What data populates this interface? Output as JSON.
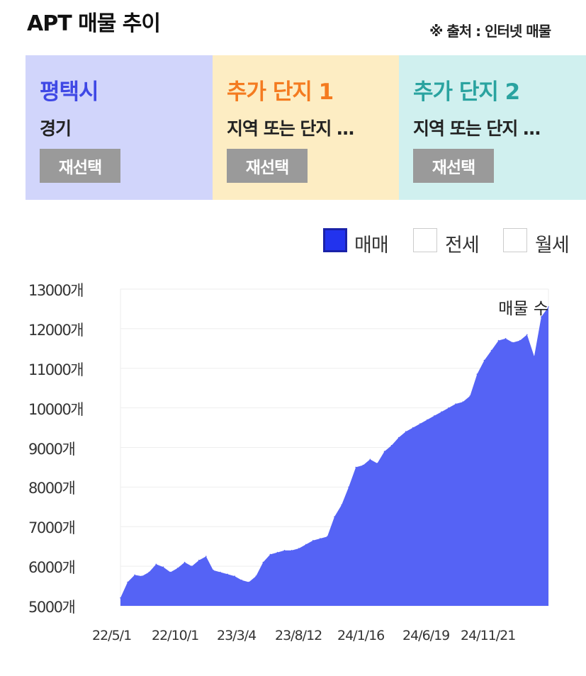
{
  "header": {
    "title": "APT 매물 추이",
    "source": "※ 출처 : 인터넷 매물"
  },
  "panels": [
    {
      "name": "평택시",
      "sub": "경기",
      "button": "재선택",
      "bg": "#d1d5fb",
      "color": "#3f48e5"
    },
    {
      "name": "추가 단지 1",
      "sub": "지역 또는 단지 …",
      "button": "재선택",
      "bg": "#fdedc3",
      "color": "#f47b20"
    },
    {
      "name": "추가 단지 2",
      "sub": "지역 또는 단지 …",
      "button": "재선택",
      "bg": "#d0f0ef",
      "color": "#2aa3a0"
    }
  ],
  "legend": [
    {
      "label": "매매",
      "checked": true,
      "color": "#2233ee"
    },
    {
      "label": "전세",
      "checked": false,
      "color": "#ffffff"
    },
    {
      "label": "월세",
      "checked": false,
      "color": "#ffffff"
    }
  ],
  "chart_data": {
    "type": "area",
    "title": "",
    "annotation": "매물 수",
    "color": "#5563f5",
    "ylim": [
      5000,
      13000
    ],
    "yticks": [
      13000,
      12000,
      11000,
      10000,
      9000,
      8000,
      7000,
      6000,
      5000
    ],
    "ytick_labels": [
      "13000개",
      "12000개",
      "11000개",
      "10000개",
      "9000개",
      "8000개",
      "7000개",
      "6000개",
      "5000개"
    ],
    "xtick_labels": [
      "22/5/1",
      "22/10/1",
      "23/3/4",
      "23/8/12",
      "24/1/16",
      "24/6/19",
      "24/11/21"
    ],
    "grid": true,
    "series": [
      {
        "values": [
          5200,
          5600,
          5780,
          5750,
          5850,
          6050,
          5980,
          5850,
          5950,
          6100,
          6000,
          6150,
          6250,
          5900,
          5850,
          5800,
          5750,
          5650,
          5600,
          5750,
          6100,
          6300,
          6350,
          6400,
          6400,
          6450,
          6550,
          6650,
          6700,
          6750,
          7250,
          7550,
          8000,
          8500,
          8550,
          8700,
          8600,
          8900,
          9050,
          9250,
          9400,
          9500,
          9600,
          9700,
          9800,
          9900,
          10000,
          10100,
          10150,
          10300,
          10850,
          11200,
          11450,
          11700,
          11750,
          11650,
          11700,
          11850,
          11300,
          12300,
          12550
        ]
      }
    ]
  }
}
